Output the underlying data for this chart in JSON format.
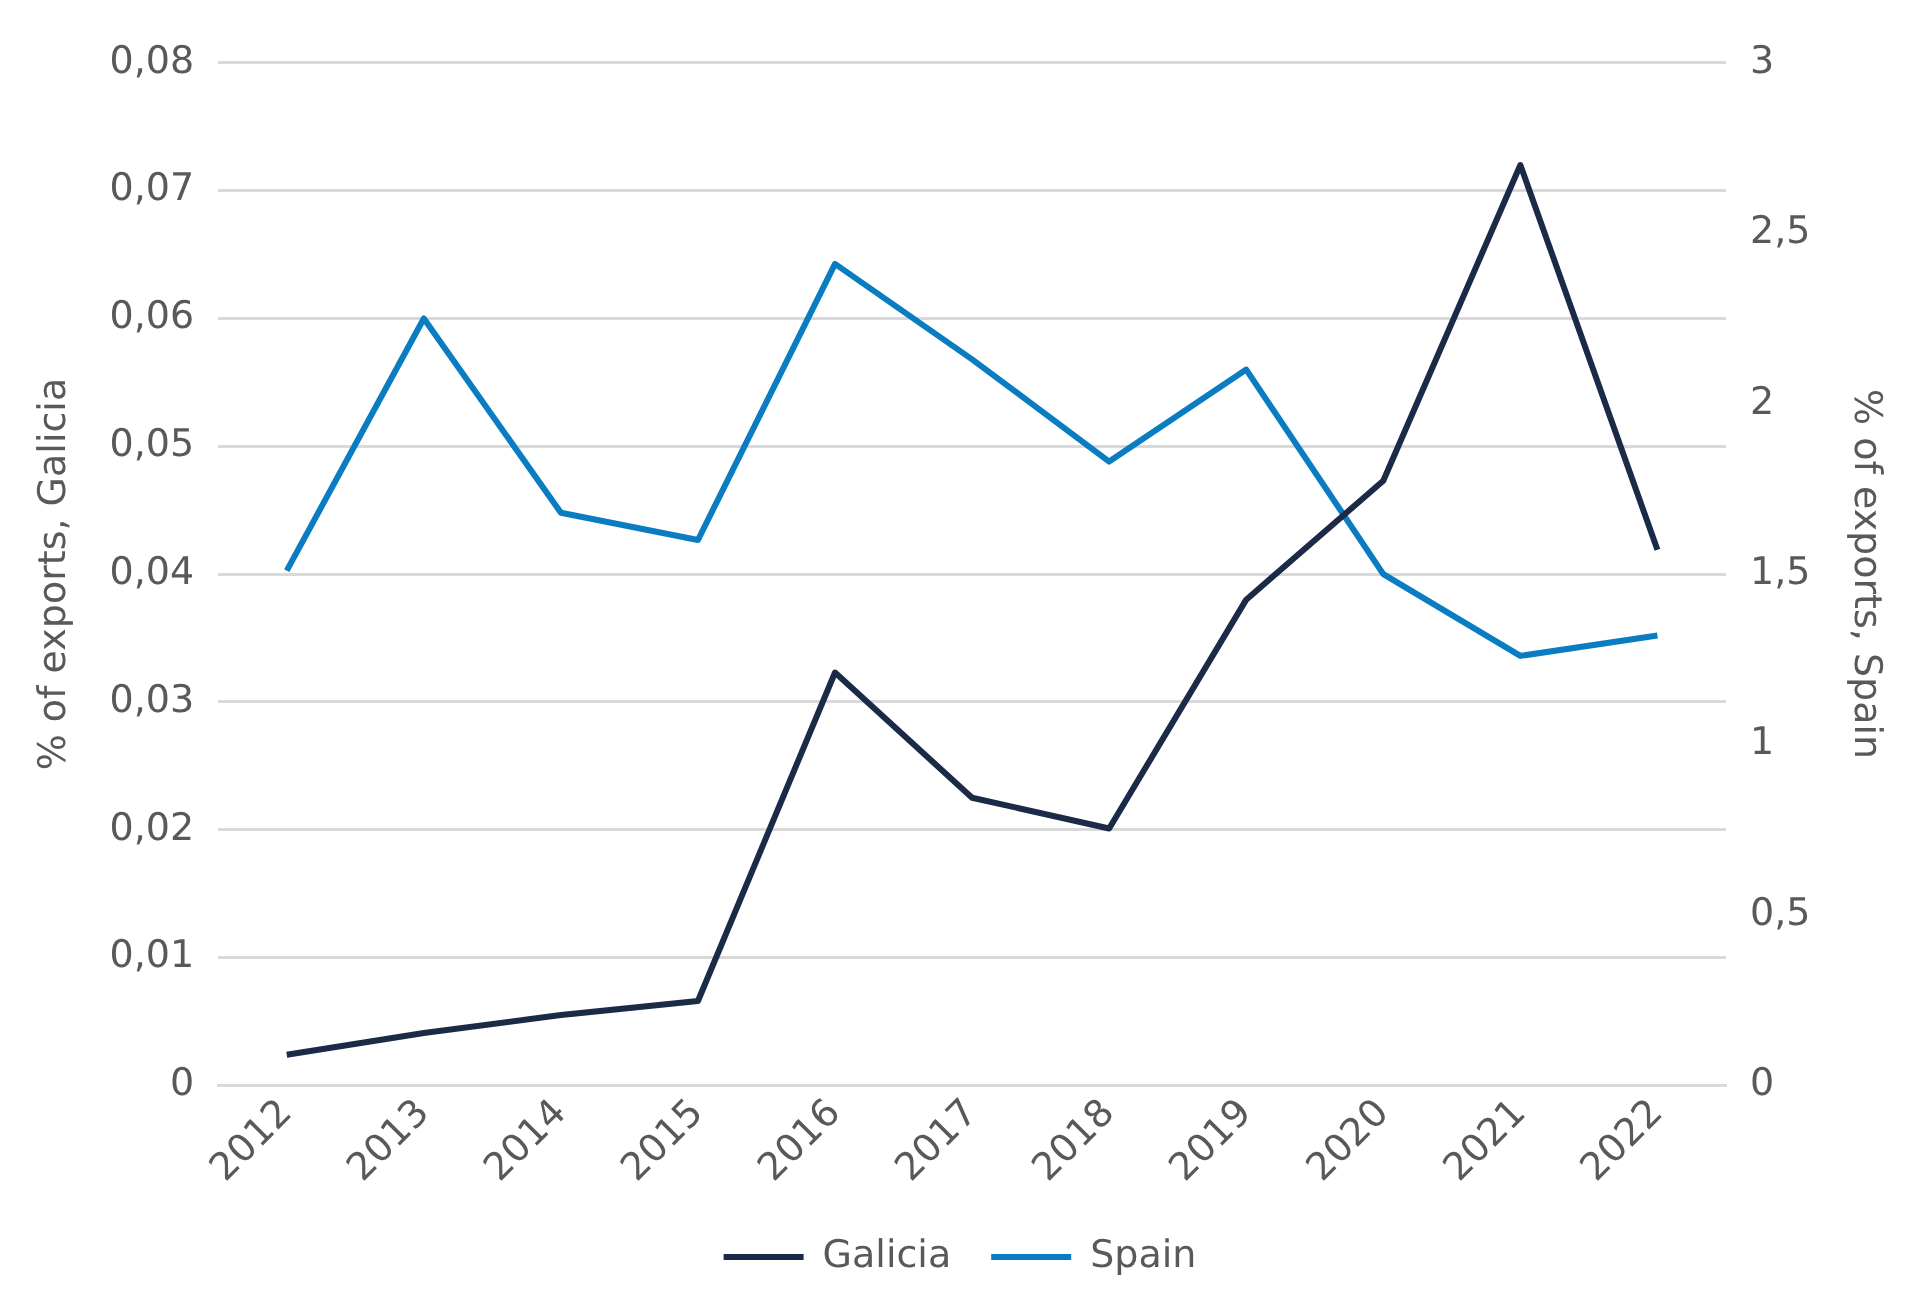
{
  "chart_data": {
    "type": "line",
    "categories": [
      "2012",
      "2013",
      "2014",
      "2015",
      "2016",
      "2017",
      "2018",
      "2019",
      "2020",
      "2021",
      "2022"
    ],
    "series": [
      {
        "name": "Galicia",
        "color": "#1b2a47",
        "values": [
          0.0024,
          0.0041,
          0.0055,
          0.0066,
          0.0323,
          0.0225,
          0.0201,
          0.038,
          0.0473,
          0.072,
          0.0419
        ]
      },
      {
        "name": "Spain",
        "color": "#0a7cc1",
        "axis": "y2",
        "values": [
          1.51,
          2.25,
          1.68,
          1.6,
          2.41,
          2.13,
          1.83,
          2.1,
          1.5,
          1.26,
          1.32
        ]
      }
    ],
    "ylabel": "% of exports, Galicia",
    "y2label": "% of exports, Spain",
    "ylim": [
      0,
      0.08
    ],
    "yticks": [
      0,
      {
        "value": 0.01,
        "label": "0,01"
      },
      {
        "value": 0.02,
        "label": "0,02"
      },
      {
        "value": 0.03,
        "label": "0,03"
      },
      {
        "value": 0.04,
        "label": "0,04"
      },
      {
        "value": 0.05,
        "label": "0,05"
      },
      {
        "value": 0.06,
        "label": "0,06"
      },
      {
        "value": 0.07,
        "label": "0,07"
      },
      {
        "value": 0.08,
        "label": "0,08"
      }
    ],
    "y2lim": [
      0,
      3
    ],
    "y2ticks": [
      0,
      {
        "value": 0.5,
        "label": "0,5"
      },
      1,
      {
        "value": 1.5,
        "label": "1,5"
      },
      2,
      {
        "value": 2.5,
        "label": "2,5"
      },
      3
    ],
    "grid": "y",
    "legend": "bottom",
    "marker": "none",
    "line_style": "solid"
  }
}
